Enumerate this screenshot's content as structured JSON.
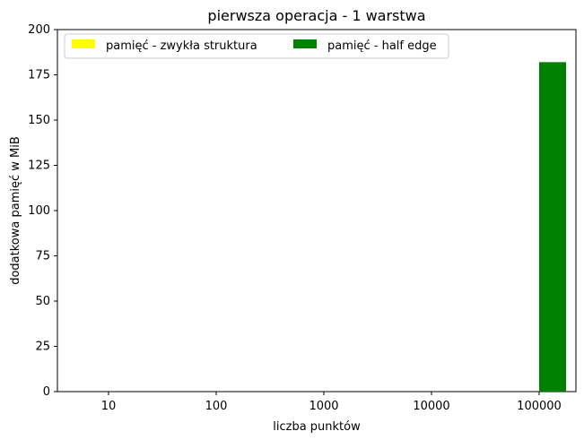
{
  "chart_data": {
    "type": "bar",
    "title": "pierwsza operacja - 1 warstwa",
    "xlabel": "liczba punktów",
    "ylabel": "dodatkowa pamięć w MiB",
    "categories": [
      "10",
      "100",
      "1000",
      "10000",
      "100000"
    ],
    "ylim": [
      0,
      200
    ],
    "yticks": [
      "0",
      "25",
      "50",
      "75",
      "100",
      "125",
      "150",
      "175",
      "200"
    ],
    "legend_placement": "top-left",
    "legend_columns": 2,
    "grid": false,
    "series": [
      {
        "name": "pamięć - zwykła struktura",
        "color": "#ffff00",
        "values": [
          0,
          0,
          0,
          0,
          0
        ]
      },
      {
        "name": "pamięć - half edge",
        "color": "#008000",
        "values": [
          0,
          0,
          0,
          0,
          182
        ]
      }
    ]
  }
}
